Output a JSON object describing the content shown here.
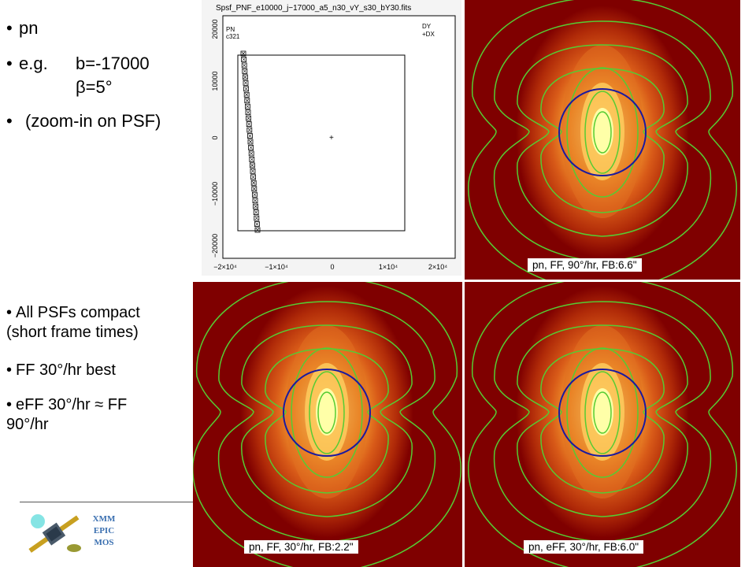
{
  "top_bullets": {
    "b1": "pn",
    "b2_key": "e.g.",
    "b2_val1": "b=-17000",
    "b2_val2": "β=5°",
    "b3": "(zoom-in on PSF)"
  },
  "bottom_bullets": {
    "b1_l1": "All PSFs compact",
    "b1_l2": "(short frame times)",
    "b2": "FF 30°/hr best",
    "b3_l1": "eFF 30°/hr ≈ FF",
    "b3_l2": "90°/hr"
  },
  "logo": {
    "l1": "XMM",
    "l2": "EPIC",
    "l3": "MOS"
  },
  "plot": {
    "title": "Spsf_PNF_e10000_j−17000_a5_n30_vY_s30_bY30.fits",
    "label_pn": "PN",
    "label_ccd": "c321",
    "label_dy": "DY",
    "label_dx": "+DX",
    "x_ticks": [
      "−2×10⁴",
      "−1×10⁴",
      "0",
      "1×10⁴",
      "2×10⁴"
    ],
    "y_ticks": [
      "20000",
      "10000",
      "0",
      "−10000",
      "−20000"
    ]
  },
  "panels": {
    "p1_caption": "pn, FF, 90°/hr, FB:6.6\"",
    "p2_caption": "pn, FF, 30°/hr, FB:2.2\"",
    "p3_caption": "pn, eFF, 30°/hr, FB:6.0\""
  },
  "colors": {
    "psf_bg": "#7f0000",
    "contour": "#55cc33",
    "circle": "#1a1aa0",
    "logo": "#3a6fb0"
  }
}
